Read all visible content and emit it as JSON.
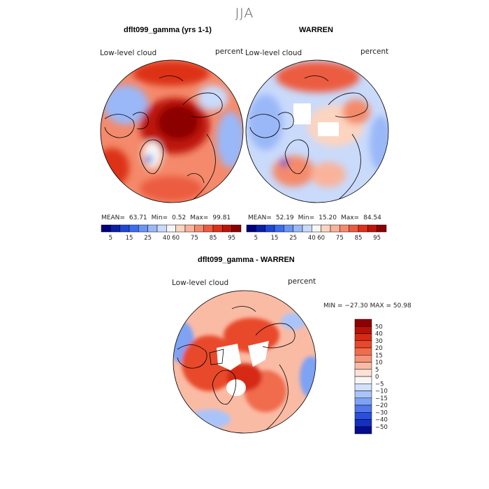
{
  "season": "JJA",
  "colors": {
    "abs_scale": [
      "#00007f",
      "#0a1ea6",
      "#1f47d6",
      "#3a6df0",
      "#6b95f5",
      "#9ab8f8",
      "#c9dafb",
      "#f6f6f6",
      "#fcd4c0",
      "#fab39b",
      "#f48a6b",
      "#ec5b3f",
      "#dd3118",
      "#be1408",
      "#8c0000"
    ],
    "diff_scale": [
      "#8c0000",
      "#b8100a",
      "#d62a12",
      "#e8482a",
      "#f06c4d",
      "#f69478",
      "#fabba5",
      "#fde1d5",
      "#f6f6f6",
      "#d3e0fb",
      "#aac4f9",
      "#7ea2f4",
      "#5077ec",
      "#2a4fdc",
      "#1530bd",
      "#050c8f"
    ]
  },
  "chart_data": [
    {
      "type": "heatmap",
      "title": "dflt099_gamma (yrs 1-1)",
      "label_left": "Low-level cloud",
      "label_right": "percent",
      "stats": {
        "mean_label": "MEAN=",
        "mean": "63.71",
        "min_label": "Min=",
        "min": "0.52",
        "max_label": "Max=",
        "max": "99.81"
      },
      "colorbar_ticks": [
        "5",
        "15",
        "25",
        "40",
        "60",
        "75",
        "85",
        "95"
      ],
      "projection": "north polar stereographic"
    },
    {
      "type": "heatmap",
      "title": "WARREN",
      "label_left": "Low-level cloud",
      "label_right": "percent",
      "stats": {
        "mean_label": "MEAN=",
        "mean": "52.19",
        "min_label": "Min=",
        "min": "15.20",
        "max_label": "Max=",
        "max": "84.54"
      },
      "colorbar_ticks": [
        "5",
        "15",
        "25",
        "40",
        "60",
        "75",
        "85",
        "95"
      ],
      "projection": "north polar stereographic"
    },
    {
      "type": "heatmap",
      "title": "dflt099_gamma - WARREN",
      "label_left": "Low-level cloud",
      "label_right": "percent",
      "minmax": "MIN = −27.30 MAX =  50.98",
      "colorbar_ticks": [
        "50",
        "40",
        "30",
        "20",
        "15",
        "10",
        "5",
        "0",
        "−5",
        "−10",
        "−15",
        "−20",
        "−30",
        "−40",
        "−50"
      ],
      "projection": "north polar stereographic"
    }
  ]
}
